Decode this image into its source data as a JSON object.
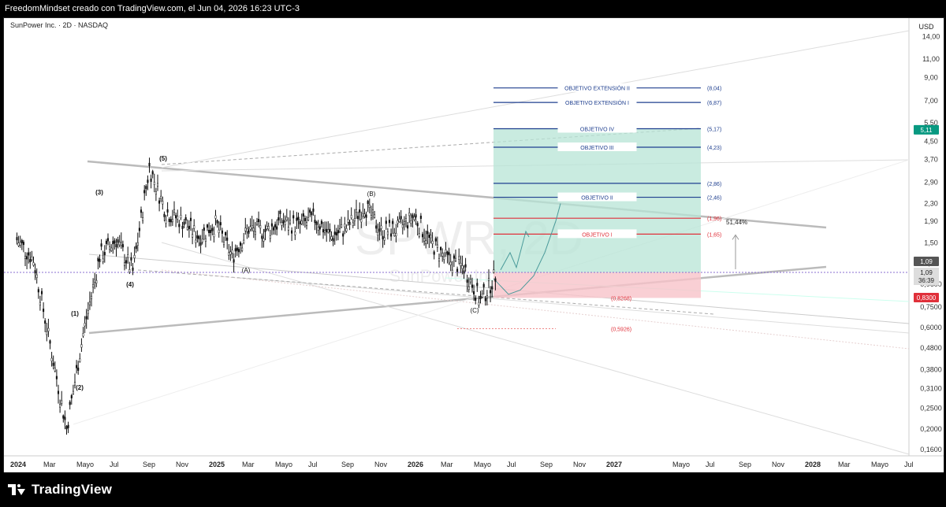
{
  "header": {
    "caption": "FreedomMindset creado con TradingView.com, el Jun 04, 2026 16:23 UTC-3"
  },
  "symbol_line": "SunPower Inc. · 2D · NASDAQ",
  "currency": "USD",
  "watermark": "SPWR, 2D",
  "watermark_sub": "SunPower Inc.",
  "footer": {
    "brand": "TradingView"
  },
  "colors": {
    "green_zone": "#b7e4d6",
    "red_zone": "#f7c3c9",
    "target_blue": "#1f3f8f",
    "target_red": "#e0303a",
    "price_tag": "#089981",
    "stop_tag": "#e0303a"
  },
  "chart_data": {
    "type": "line",
    "scale": "log",
    "ylim": [
      0.16,
      16
    ],
    "y_ticks": [
      "14,00",
      "11,00",
      "9,00",
      "7,00",
      "5,50",
      "4,50",
      "3,70",
      "2,90",
      "2,30",
      "1,90",
      "1,50",
      "1,20",
      "0,9600",
      "0,7500",
      "0,6000",
      "0,4800",
      "0,3800",
      "0,3100",
      "0,2500",
      "0,2000",
      "0,1600"
    ],
    "x_ticks": [
      "2024",
      "Mar",
      "Mayo",
      "Jul",
      "Sep",
      "Nov",
      "2025",
      "Mar",
      "Mayo",
      "Jul",
      "Sep",
      "Nov",
      "2026",
      "Mar",
      "Mayo",
      "Jul",
      "Sep",
      "Nov",
      "2027",
      "Mayo",
      "Jul",
      "Sep",
      "Nov",
      "2028",
      "Mar",
      "Mayo",
      "Jul"
    ],
    "price_series": [
      {
        "x": "2024-01",
        "y": 1.55
      },
      {
        "x": "2024-02",
        "y": 1.25
      },
      {
        "x": "2024-03",
        "y": 0.5
      },
      {
        "x": "2024-04",
        "y": 0.2
      },
      {
        "x": "2024-05",
        "y": 0.56
      },
      {
        "x": "2024-06",
        "y": 1.3
      },
      {
        "x": "2024-07",
        "y": 1.55
      },
      {
        "x": "2024-08",
        "y": 1.1
      },
      {
        "x": "2024-09",
        "y": 3.4
      },
      {
        "x": "2024-10",
        "y": 2.1
      },
      {
        "x": "2024-11",
        "y": 1.9
      },
      {
        "x": "2024-12",
        "y": 1.6
      },
      {
        "x": "2025-01",
        "y": 1.85
      },
      {
        "x": "2025-02",
        "y": 1.3
      },
      {
        "x": "2025-03",
        "y": 1.75
      },
      {
        "x": "2025-04",
        "y": 1.7
      },
      {
        "x": "2025-05",
        "y": 1.9
      },
      {
        "x": "2025-06",
        "y": 1.8
      },
      {
        "x": "2025-07",
        "y": 1.95
      },
      {
        "x": "2025-08",
        "y": 1.6
      },
      {
        "x": "2025-09",
        "y": 1.8
      },
      {
        "x": "2025-10",
        "y": 2.25
      },
      {
        "x": "2025-11",
        "y": 1.7
      },
      {
        "x": "2025-12",
        "y": 1.75
      },
      {
        "x": "2026-01",
        "y": 2.0
      },
      {
        "x": "2026-02",
        "y": 1.5
      },
      {
        "x": "2026-03",
        "y": 1.25
      },
      {
        "x": "2026-04",
        "y": 1.15
      },
      {
        "x": "2026-05",
        "y": 0.8
      },
      {
        "x": "2026-06",
        "y": 1.09
      }
    ],
    "wave_labels": [
      "(1)",
      "(2)",
      "(3)",
      "(4)",
      "(5)",
      "(A)",
      "(B)",
      "(C)"
    ],
    "targets": [
      {
        "label": "OBJETIVO EXTENSIÓN II",
        "value_label": "(8,04)",
        "value": 8.04,
        "color": "blue"
      },
      {
        "label": "OBJETIVO EXTENSIÓN I",
        "value_label": "(6,87)",
        "value": 6.87,
        "color": "blue"
      },
      {
        "label": "OBJETIVO IV",
        "value_label": "(5,17)",
        "value": 5.17,
        "color": "blue"
      },
      {
        "label": "OBJETIVO III",
        "value_label": "(4,23)",
        "value": 4.23,
        "color": "blue"
      },
      {
        "label": "",
        "value_label": "(2,86)",
        "value": 2.86,
        "color": "blue"
      },
      {
        "label": "OBJETIVO II",
        "value_label": "(2,46)",
        "value": 2.46,
        "color": "blue"
      },
      {
        "label": "",
        "value_label": "(1,96)",
        "value": 1.96,
        "color": "red"
      },
      {
        "label": "OBJETIVO I",
        "value_label": "(1,65)",
        "value": 1.65,
        "color": "red"
      }
    ],
    "stop_labels": [
      {
        "value_label": "(0,8268)",
        "value": 0.8268
      },
      {
        "value_label": "(0,5926)",
        "value": 0.5926
      }
    ],
    "annotation_pct": "51,44%",
    "last_price": {
      "value": "1,09",
      "countdown": "36:39",
      "tags": [
        "5,11",
        "1,09",
        "0,8300"
      ]
    }
  }
}
